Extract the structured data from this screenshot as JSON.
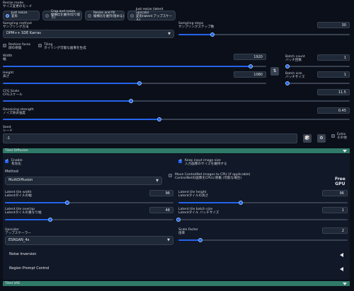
{
  "resize_mode": {
    "label": "Resize mode",
    "sublabel": "サイズ変更のモード",
    "options": [
      {
        "l1": "Just resize",
        "l2": "変形",
        "selected": true
      },
      {
        "l1": "Crop and resize",
        "l2": "縦横比を維持(切り取り)",
        "selected": false
      },
      {
        "l1": "Resize and fill",
        "l2": "縦横比を維持(埋める)",
        "selected": false
      },
      {
        "l1": "Just resize (latent upscale)",
        "l2": "変形(latent アップスケール)",
        "selected": false
      }
    ]
  },
  "sampling_method": {
    "label": "Sampling method",
    "sublabel": "サンプリング方法",
    "value": "DPM++ SDE Karras"
  },
  "sampling_steps": {
    "label": "Sampling steps",
    "sublabel": "サンプリングステップ数",
    "value": "30",
    "fraction": 0.2
  },
  "restore_faces": {
    "label": "Restore faces",
    "sublabel": "顔の修復"
  },
  "tiling": {
    "label": "Tiling",
    "sublabel": "タイリング可能な画像を生成"
  },
  "width": {
    "label": "Width",
    "sublabel": "幅",
    "value": "1920",
    "fraction": 0.94
  },
  "height": {
    "label": "Height",
    "sublabel": "高さ",
    "value": "1080",
    "fraction": 0.52
  },
  "swap_icon_glyph": "⇅",
  "batch_count": {
    "label": "Batch count",
    "sublabel": "バッチ回数",
    "value": "1",
    "fraction": 0.0
  },
  "batch_size": {
    "label": "Batch size",
    "sublabel": "バッチサイズ",
    "value": "1",
    "fraction": 0.0
  },
  "cfg_scale": {
    "label": "CFG Scale",
    "sublabel": "CFGスケール",
    "value": "11.5",
    "fraction": 0.37
  },
  "denoising": {
    "label": "Denoising strength",
    "sublabel": "ノイズ除去強度",
    "value": "0.45",
    "fraction": 0.45
  },
  "seed": {
    "label": "Seed",
    "sublabel": "シード",
    "value": "-1"
  },
  "extra": {
    "l1": "Extra",
    "l2": "その他"
  },
  "tiled_diffusion": {
    "header": "Tiled Diffusion",
    "enable": {
      "l1": "Enable",
      "l2": "有効化"
    },
    "keep_size": {
      "l1": "Keep input image size",
      "l2": "入力画像のサイズを維持する"
    },
    "method_label": "Method",
    "method_value": "MultiDiffusion",
    "move_controlnet": {
      "l1": "Move ControlNet images to CPU (if applicable)",
      "l2": "ControlNetの画像をCPUに移動 (可能な場合)"
    },
    "free_gpu": {
      "l1": "Free",
      "l2": "GPU"
    },
    "tile_width": {
      "l1": "Latent tile width",
      "l2": "Latentタイルの幅",
      "value": "96",
      "fraction": 0.37
    },
    "tile_height": {
      "l1": "Latent tile height",
      "l2": "Latentタイルの高さ",
      "value": "96",
      "fraction": 0.37
    },
    "tile_overlap": {
      "l1": "Latent tile overlap",
      "l2": "Latentタイルの重なり幅",
      "value": "48",
      "fraction": 0.27
    },
    "tile_batch": {
      "l1": "Latent tile batch size",
      "l2": "Latentタイル バッチサイズ",
      "value": "1",
      "fraction": 0.0
    },
    "upscaler": {
      "l1": "Upscaler",
      "l2": "アップスケーラー",
      "value": "ESRGAN_4x"
    },
    "scale_factor": {
      "l1": "Scale Factor",
      "l2": "倍率",
      "value": "2",
      "fraction": 0.13
    },
    "noise_inversion": "Noise Inversion",
    "region_prompt": "Region Prompt Control"
  },
  "tiled_vae": {
    "header": "Tiled VAE"
  },
  "colors": {
    "accent": "#2563eb",
    "header_bar": "#2f7a68",
    "background": "#0b0f19"
  }
}
